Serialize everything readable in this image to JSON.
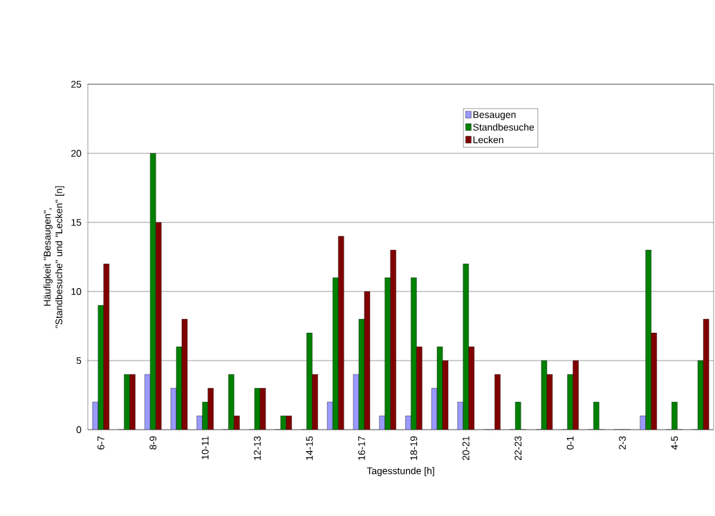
{
  "chart_data": {
    "type": "bar",
    "xlabel": "Tagesstunde [h]",
    "ylabel": "Häufigkeit \"Besaugen\", \"Standbesuche\" und \"Lecken\" [n]",
    "categories": [
      "6-7",
      null,
      "8-9",
      null,
      "10-11",
      null,
      "12-13",
      null,
      "14-15",
      null,
      "16-17",
      null,
      "18-19",
      null,
      "20-21",
      null,
      "22-23",
      null,
      "0-1",
      null,
      "2-3",
      null,
      "4-5",
      null
    ],
    "series": [
      {
        "name": "Besaugen",
        "color": "#9999ff",
        "values": [
          2,
          0,
          4,
          3,
          1,
          0,
          0,
          0,
          0,
          2,
          4,
          1,
          1,
          3,
          2,
          0,
          0,
          0,
          0,
          0,
          0,
          1,
          0,
          0
        ]
      },
      {
        "name": "Standbesuche",
        "color": "#008000",
        "values": [
          9,
          4,
          20,
          6,
          2,
          4,
          3,
          1,
          7,
          11,
          8,
          11,
          11,
          6,
          12,
          0,
          2,
          5,
          4,
          2,
          0,
          13,
          2,
          5
        ]
      },
      {
        "name": "Lecken",
        "color": "#800000",
        "values": [
          12,
          4,
          15,
          8,
          3,
          1,
          3,
          1,
          4,
          14,
          10,
          13,
          6,
          5,
          6,
          4,
          0,
          4,
          5,
          0,
          0,
          7,
          0,
          8
        ]
      }
    ],
    "ylim": [
      0,
      25
    ],
    "yticks": [
      0,
      5,
      10,
      15,
      20,
      25
    ],
    "grid": "y",
    "legend": "top right"
  }
}
